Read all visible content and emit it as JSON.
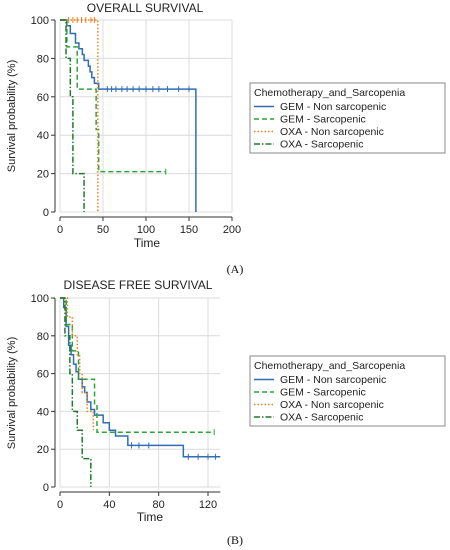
{
  "colors": {
    "gem_non": "#2f6db5",
    "gem_sarc": "#2fa33a",
    "oxa_non": "#f07f1e",
    "oxa_sarc": "#1f7a2e",
    "grid": "#dcdcdc",
    "axis": "#333333"
  },
  "chart_data": [
    {
      "type": "line",
      "title": "OVERALL SURVIVAL",
      "panel_label": "(A)",
      "xlabel": "Time",
      "ylabel": "Survival probability (%)",
      "xlim": [
        0,
        200
      ],
      "ylim": [
        0,
        100
      ],
      "x_ticks": [
        0,
        50,
        100,
        150,
        200
      ],
      "y_ticks": [
        0,
        20,
        40,
        60,
        80,
        100
      ],
      "grid": true,
      "legend": {
        "title": "Chemotherapy_and_Sarcopenia",
        "placement": "right",
        "entries": [
          "GEM - Non sarcopenic",
          "GEM - Sarcopenic",
          "OXA - Non sarcopenic",
          "OXA - Sarcopenic"
        ]
      },
      "series": [
        {
          "name": "GEM - Non sarcopenic",
          "color_key": "gem_non",
          "style": "solid",
          "steps": [
            [
              0,
              100
            ],
            [
              8,
              97
            ],
            [
              12,
              93
            ],
            [
              18,
              88
            ],
            [
              22,
              85
            ],
            [
              26,
              82
            ],
            [
              28,
              79
            ],
            [
              33,
              76
            ],
            [
              35,
              73
            ],
            [
              37,
              70
            ],
            [
              40,
              67
            ],
            [
              45,
              64
            ],
            [
              60,
              64
            ],
            [
              80,
              64
            ],
            [
              100,
              64
            ],
            [
              120,
              64
            ],
            [
              140,
              64
            ],
            [
              157,
              64
            ],
            [
              158,
              0
            ]
          ],
          "censor": [
            55,
            60,
            65,
            72,
            78,
            85,
            92,
            100,
            108,
            115,
            125,
            138,
            150
          ]
        },
        {
          "name": "GEM - Sarcopenic",
          "color_key": "gem_sarc",
          "style": "dashed",
          "steps": [
            [
              0,
              100
            ],
            [
              8,
              86
            ],
            [
              17,
              86
            ],
            [
              20,
              64
            ],
            [
              38,
              64
            ],
            [
              42,
              43
            ],
            [
              45,
              21
            ],
            [
              123,
              21
            ]
          ],
          "censor": [
            123
          ]
        },
        {
          "name": "OXA - Non sarcopenic",
          "color_key": "oxa_non",
          "style": "dotted",
          "steps": [
            [
              0,
              100
            ],
            [
              44,
              100
            ],
            [
              44,
              0
            ]
          ],
          "censor": [
            10,
            15,
            20,
            25,
            30,
            36,
            40
          ]
        },
        {
          "name": "OXA - Sarcopenic",
          "color_key": "oxa_sarc",
          "style": "dashdot",
          "steps": [
            [
              0,
              100
            ],
            [
              7,
              80
            ],
            [
              12,
              60
            ],
            [
              15,
              20
            ],
            [
              25,
              20
            ],
            [
              28,
              0
            ]
          ],
          "censor": []
        }
      ]
    },
    {
      "type": "line",
      "title": "DISEASE FREE SURVIVAL",
      "panel_label": "(B)",
      "xlabel": "Time",
      "ylabel": "Survival probability (%)",
      "xlim": [
        0,
        130
      ],
      "ylim": [
        0,
        100
      ],
      "x_ticks": [
        0,
        40,
        80,
        120
      ],
      "y_ticks": [
        0,
        20,
        40,
        60,
        80,
        100
      ],
      "grid": true,
      "legend": {
        "title": "Chemotherapy_and_Sarcopenia",
        "placement": "right",
        "entries": [
          "GEM - Non sarcopenic",
          "GEM - Sarcopenic",
          "OXA - Non sarcopenic",
          "OXA - Sarcopenic"
        ]
      },
      "series": [
        {
          "name": "GEM - Non sarcopenic",
          "color_key": "gem_non",
          "style": "solid",
          "steps": [
            [
              0,
              100
            ],
            [
              3,
              95
            ],
            [
              5,
              85
            ],
            [
              7,
              75
            ],
            [
              9,
              70
            ],
            [
              11,
              65
            ],
            [
              13,
              61
            ],
            [
              15,
              57
            ],
            [
              18,
              53
            ],
            [
              20,
              50
            ],
            [
              22,
              45
            ],
            [
              25,
              41
            ],
            [
              28,
              38
            ],
            [
              35,
              34
            ],
            [
              40,
              30
            ],
            [
              45,
              27
            ],
            [
              55,
              22
            ],
            [
              70,
              22
            ],
            [
              82,
              22
            ],
            [
              100,
              16
            ],
            [
              130,
              16
            ]
          ],
          "censor": [
            58,
            64,
            72,
            104,
            112,
            120,
            126
          ]
        },
        {
          "name": "GEM - Sarcopenic",
          "color_key": "gem_sarc",
          "style": "dashed",
          "steps": [
            [
              0,
              100
            ],
            [
              5,
              86
            ],
            [
              10,
              72
            ],
            [
              15,
              57
            ],
            [
              25,
              57
            ],
            [
              28,
              43
            ],
            [
              30,
              29
            ],
            [
              125,
              29
            ]
          ],
          "censor": [
            125
          ]
        },
        {
          "name": "OXA - Non sarcopenic",
          "color_key": "oxa_non",
          "style": "dotted",
          "steps": [
            [
              0,
              100
            ],
            [
              6,
              90
            ],
            [
              10,
              80
            ],
            [
              14,
              70
            ],
            [
              16,
              60
            ],
            [
              18,
              50
            ],
            [
              22,
              40
            ],
            [
              27,
              30
            ]
          ],
          "censor": []
        },
        {
          "name": "OXA - Sarcopenic",
          "color_key": "oxa_sarc",
          "style": "dashdot",
          "steps": [
            [
              0,
              100
            ],
            [
              4,
              80
            ],
            [
              8,
              60
            ],
            [
              10,
              40
            ],
            [
              14,
              30
            ],
            [
              18,
              15
            ],
            [
              24,
              15
            ],
            [
              25,
              0
            ]
          ],
          "censor": []
        }
      ]
    }
  ]
}
